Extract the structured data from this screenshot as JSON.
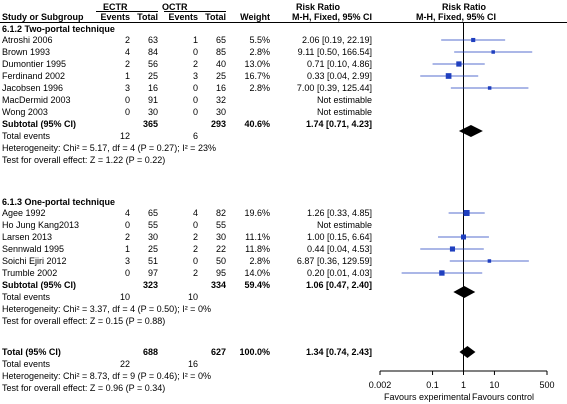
{
  "header": {
    "group1": "ECTR",
    "group2": "OCTR",
    "effect_title": "Risk Ratio",
    "plot_title": "Risk Ratio",
    "col_study": "Study or Subgroup",
    "col_events1": "Events",
    "col_total1": "Total",
    "col_events2": "Events",
    "col_total2": "Total",
    "col_weight": "Weight",
    "col_method": "M-H, Fixed, 95% CI",
    "col_method_plot": "M-H, Fixed, 95% CI"
  },
  "subgroups": [
    {
      "title": "6.1.2 Two-portal technique",
      "studies": [
        {
          "name": "Atroshi 2006",
          "e1": "2",
          "n1": "63",
          "e2": "1",
          "n2": "65",
          "weight": "5.5%",
          "ci": "2.06 [0.19, 22.19]"
        },
        {
          "name": "Brown 1993",
          "e1": "4",
          "n1": "84",
          "e2": "0",
          "n2": "85",
          "weight": "2.8%",
          "ci": "9.11 [0.50, 166.54]"
        },
        {
          "name": "Dumontier 1995",
          "e1": "2",
          "n1": "56",
          "e2": "2",
          "n2": "40",
          "weight": "13.0%",
          "ci": "0.71 [0.10, 4.86]"
        },
        {
          "name": "Ferdinand 2002",
          "e1": "1",
          "n1": "25",
          "e2": "3",
          "n2": "25",
          "weight": "16.7%",
          "ci": "0.33 [0.04, 2.99]"
        },
        {
          "name": "Jacobsen 1996",
          "e1": "3",
          "n1": "16",
          "e2": "0",
          "n2": "16",
          "weight": "2.8%",
          "ci": "7.00 [0.39, 125.44]"
        },
        {
          "name": "MacDermid 2003",
          "e1": "0",
          "n1": "91",
          "e2": "0",
          "n2": "32",
          "weight": "",
          "ci": "Not estimable"
        },
        {
          "name": "Wong 2003",
          "e1": "0",
          "n1": "30",
          "e2": "0",
          "n2": "30",
          "weight": "",
          "ci": "Not estimable"
        }
      ],
      "subtotal": {
        "label": "Subtotal (95% CI)",
        "n1": "365",
        "n2": "293",
        "weight": "40.6%",
        "ci": "1.74 [0.71, 4.23]"
      },
      "total_events": {
        "label": "Total events",
        "e1": "12",
        "e2": "6"
      },
      "heterogeneity": "Heterogeneity: Chi² = 5.17, df = 4 (P = 0.27); I² = 23%",
      "overall": "Test for overall effect: Z = 1.22 (P = 0.22)"
    },
    {
      "title": "6.1.3 One-portal technique",
      "studies": [
        {
          "name": "Agee 1992",
          "e1": "4",
          "n1": "65",
          "e2": "4",
          "n2": "82",
          "weight": "19.6%",
          "ci": "1.26 [0.33, 4.85]"
        },
        {
          "name": "Ho Jung Kang2013",
          "e1": "0",
          "n1": "55",
          "e2": "0",
          "n2": "55",
          "weight": "",
          "ci": "Not estimable"
        },
        {
          "name": "Larsen 2013",
          "e1": "2",
          "n1": "30",
          "e2": "2",
          "n2": "30",
          "weight": "11.1%",
          "ci": "1.00 [0.15, 6.64]"
        },
        {
          "name": "Sennwald 1995",
          "e1": "1",
          "n1": "25",
          "e2": "2",
          "n2": "22",
          "weight": "11.8%",
          "ci": "0.44 [0.04, 4.53]"
        },
        {
          "name": "Soichi Ejiri 2012",
          "e1": "3",
          "n1": "51",
          "e2": "0",
          "n2": "50",
          "weight": "2.8%",
          "ci": "6.87 [0.36, 129.59]"
        },
        {
          "name": "Trumble 2002",
          "e1": "0",
          "n1": "97",
          "e2": "2",
          "n2": "95",
          "weight": "14.0%",
          "ci": "0.20 [0.01, 4.03]"
        }
      ],
      "subtotal": {
        "label": "Subtotal (95% CI)",
        "n1": "323",
        "n2": "334",
        "weight": "59.4%",
        "ci": "1.06 [0.47, 2.40]"
      },
      "total_events": {
        "label": "Total events",
        "e1": "10",
        "e2": "10"
      },
      "heterogeneity": "Heterogeneity: Chi² = 3.37, df = 4 (P = 0.50); I² = 0%",
      "overall": "Test for overall effect: Z = 0.15 (P = 0.88)"
    }
  ],
  "total": {
    "label": "Total (95% CI)",
    "n1": "688",
    "n2": "627",
    "weight": "100.0%",
    "ci": "1.34 [0.74, 2.43]",
    "events_label": "Total events",
    "e1": "22",
    "e2": "16",
    "heterogeneity": "Heterogeneity: Chi² = 8.73, df = 9 (P = 0.46); I² = 0%",
    "overall": "Test for overall effect: Z = 0.96 (P = 0.34)"
  },
  "axis": {
    "favours_left": "Favours experimental",
    "favours_right": "Favours control"
  },
  "chart_data": {
    "type": "scatter",
    "xscale": "log",
    "xlim": [
      0.002,
      500
    ],
    "xticks": [
      0.002,
      0.1,
      1,
      10,
      500
    ],
    "xtick_labels": [
      "0.002",
      "0.1",
      "1",
      "10",
      "500"
    ],
    "reference_line": 1,
    "studies": [
      {
        "name": "Atroshi 2006",
        "rr": 2.06,
        "lo": 0.19,
        "hi": 22.19,
        "weight": 5.5
      },
      {
        "name": "Brown 1993",
        "rr": 9.11,
        "lo": 0.5,
        "hi": 166.54,
        "weight": 2.8
      },
      {
        "name": "Dumontier 1995",
        "rr": 0.71,
        "lo": 0.1,
        "hi": 4.86,
        "weight": 13.0
      },
      {
        "name": "Ferdinand 2002",
        "rr": 0.33,
        "lo": 0.04,
        "hi": 2.99,
        "weight": 16.7
      },
      {
        "name": "Jacobsen 1996",
        "rr": 7.0,
        "lo": 0.39,
        "hi": 125.44,
        "weight": 2.8
      },
      {
        "name": "Agee 1992",
        "rr": 1.26,
        "lo": 0.33,
        "hi": 4.85,
        "weight": 19.6
      },
      {
        "name": "Larsen 2013",
        "rr": 1.0,
        "lo": 0.15,
        "hi": 6.64,
        "weight": 11.1
      },
      {
        "name": "Sennwald 1995",
        "rr": 0.44,
        "lo": 0.04,
        "hi": 4.53,
        "weight": 11.8
      },
      {
        "name": "Soichi Ejiri 2012",
        "rr": 6.87,
        "lo": 0.36,
        "hi": 129.59,
        "weight": 2.8
      },
      {
        "name": "Trumble 2002",
        "rr": 0.2,
        "lo": 0.01,
        "hi": 4.03,
        "weight": 14.0
      }
    ],
    "summaries": [
      {
        "name": "Subtotal (95% CI) 6.1.2",
        "rr": 1.74,
        "lo": 0.71,
        "hi": 4.23
      },
      {
        "name": "Subtotal (95% CI) 6.1.3",
        "rr": 1.06,
        "lo": 0.47,
        "hi": 2.4
      },
      {
        "name": "Total (95% CI)",
        "rr": 1.34,
        "lo": 0.74,
        "hi": 2.43
      }
    ],
    "colors": {
      "marker": "#1f3fbf",
      "line": "#1f3fbf",
      "diamond": "#000000"
    }
  }
}
